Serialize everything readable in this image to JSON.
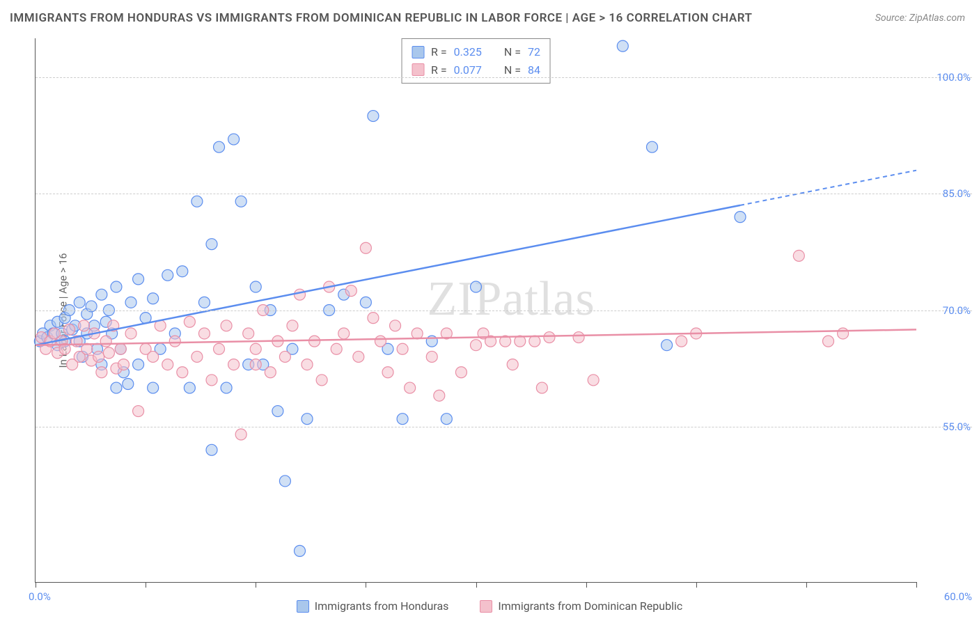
{
  "title": "IMMIGRANTS FROM HONDURAS VS IMMIGRANTS FROM DOMINICAN REPUBLIC IN LABOR FORCE | AGE > 16 CORRELATION CHART",
  "source_label": "Source:",
  "source_value": "ZipAtlas.com",
  "y_axis_label": "In Labor Force | Age > 16",
  "watermark": "ZIPatlas",
  "chart": {
    "type": "scatter",
    "xlim": [
      0,
      60
    ],
    "ylim": [
      35,
      105
    ],
    "x_origin_label": "0.0%",
    "x_max_label": "60.0%",
    "x_tick_positions": [
      0,
      7.5,
      15,
      22.5,
      30,
      37.5,
      45,
      52.5,
      60
    ],
    "y_gridlines": [
      55,
      70,
      85,
      100
    ],
    "y_tick_labels": [
      "55.0%",
      "70.0%",
      "85.0%",
      "100.0%"
    ],
    "background_color": "#ffffff",
    "grid_color": "#cccccc",
    "axis_color": "#555555",
    "tick_label_color": "#5b8def",
    "marker_radius": 8,
    "marker_stroke_width": 1.2,
    "line_width": 2.5
  },
  "series": [
    {
      "name": "Immigrants from Honduras",
      "fill_color": "#a9c7ec",
      "stroke_color": "#5b8def",
      "fill_opacity": 0.55,
      "r_value": "0.325",
      "n_value": "72",
      "trend": {
        "x1": 0,
        "y1": 65.5,
        "x2": 48,
        "y2": 83.5,
        "x2_dash": 60,
        "y2_dash": 88
      },
      "points": [
        [
          0.3,
          66
        ],
        [
          0.5,
          67
        ],
        [
          0.8,
          66.5
        ],
        [
          1,
          68
        ],
        [
          1.2,
          67
        ],
        [
          1.5,
          65.5
        ],
        [
          1.5,
          68.5
        ],
        [
          1.8,
          67
        ],
        [
          2,
          69
        ],
        [
          2,
          66
        ],
        [
          2.3,
          70
        ],
        [
          2.5,
          67.5
        ],
        [
          2.7,
          68
        ],
        [
          3,
          66
        ],
        [
          3,
          71
        ],
        [
          3.2,
          64
        ],
        [
          3.5,
          69.5
        ],
        [
          3.5,
          67
        ],
        [
          3.8,
          70.5
        ],
        [
          4,
          68
        ],
        [
          4.2,
          65
        ],
        [
          4.5,
          72
        ],
        [
          4.5,
          63
        ],
        [
          4.8,
          68.5
        ],
        [
          5,
          70
        ],
        [
          5.2,
          67
        ],
        [
          5.5,
          60
        ],
        [
          5.5,
          73
        ],
        [
          5.8,
          65
        ],
        [
          6,
          62
        ],
        [
          6.3,
          60.5
        ],
        [
          6.5,
          71
        ],
        [
          7,
          74
        ],
        [
          7,
          63
        ],
        [
          7.5,
          69
        ],
        [
          8,
          71.5
        ],
        [
          8,
          60
        ],
        [
          8.5,
          65
        ],
        [
          9,
          74.5
        ],
        [
          9.5,
          67
        ],
        [
          10,
          75
        ],
        [
          10.5,
          60
        ],
        [
          11,
          84
        ],
        [
          11.5,
          71
        ],
        [
          12,
          52
        ],
        [
          12,
          78.5
        ],
        [
          12.5,
          91
        ],
        [
          13,
          60
        ],
        [
          13.5,
          92
        ],
        [
          14,
          84
        ],
        [
          14.5,
          63
        ],
        [
          15,
          73
        ],
        [
          15.5,
          63
        ],
        [
          16,
          70
        ],
        [
          16.5,
          57
        ],
        [
          17,
          48
        ],
        [
          17.5,
          65
        ],
        [
          18,
          39
        ],
        [
          18.5,
          56
        ],
        [
          20,
          70
        ],
        [
          21,
          72
        ],
        [
          22.5,
          71
        ],
        [
          23,
          95
        ],
        [
          24,
          65
        ],
        [
          25,
          56
        ],
        [
          27,
          66
        ],
        [
          28,
          56
        ],
        [
          30,
          73
        ],
        [
          40,
          104
        ],
        [
          42,
          91
        ],
        [
          43,
          65.5
        ],
        [
          48,
          82
        ]
      ]
    },
    {
      "name": "Immigrants from Dominican Republic",
      "fill_color": "#f4c1cc",
      "stroke_color": "#e98fa6",
      "fill_opacity": 0.55,
      "r_value": "0.077",
      "n_value": "84",
      "trend": {
        "x1": 0,
        "y1": 65.5,
        "x2": 60,
        "y2": 67.5,
        "x2_dash": 60,
        "y2_dash": 67.5
      },
      "points": [
        [
          0.4,
          66.5
        ],
        [
          0.7,
          65
        ],
        [
          1,
          66
        ],
        [
          1.3,
          67
        ],
        [
          1.5,
          64.5
        ],
        [
          1.8,
          66
        ],
        [
          2,
          65
        ],
        [
          2.3,
          67.5
        ],
        [
          2.5,
          63
        ],
        [
          2.8,
          66
        ],
        [
          3,
          64
        ],
        [
          3.3,
          68
        ],
        [
          3.5,
          65
        ],
        [
          3.8,
          63.5
        ],
        [
          4,
          67
        ],
        [
          4.3,
          64
        ],
        [
          4.5,
          62
        ],
        [
          4.8,
          66
        ],
        [
          5,
          64.5
        ],
        [
          5.3,
          68
        ],
        [
          5.5,
          62.5
        ],
        [
          5.8,
          65
        ],
        [
          6,
          63
        ],
        [
          6.5,
          67
        ],
        [
          7,
          57
        ],
        [
          7.5,
          65
        ],
        [
          8,
          64
        ],
        [
          8.5,
          68
        ],
        [
          9,
          63
        ],
        [
          9.5,
          66
        ],
        [
          10,
          62
        ],
        [
          10.5,
          68.5
        ],
        [
          11,
          64
        ],
        [
          11.5,
          67
        ],
        [
          12,
          61
        ],
        [
          12.5,
          65
        ],
        [
          13,
          68
        ],
        [
          13.5,
          63
        ],
        [
          14,
          54
        ],
        [
          14.5,
          67
        ],
        [
          15,
          65
        ],
        [
          15,
          63
        ],
        [
          15.5,
          70
        ],
        [
          16,
          62
        ],
        [
          16.5,
          66
        ],
        [
          17,
          64
        ],
        [
          17.5,
          68
        ],
        [
          18,
          72
        ],
        [
          18.5,
          63
        ],
        [
          19,
          66
        ],
        [
          19.5,
          61
        ],
        [
          20,
          73
        ],
        [
          20.5,
          65
        ],
        [
          21,
          67
        ],
        [
          21.5,
          72.5
        ],
        [
          22,
          64
        ],
        [
          22.5,
          78
        ],
        [
          23,
          69
        ],
        [
          23.5,
          66
        ],
        [
          24,
          62
        ],
        [
          24.5,
          68
        ],
        [
          25,
          65
        ],
        [
          25.5,
          60
        ],
        [
          26,
          67
        ],
        [
          27,
          64
        ],
        [
          27.5,
          59
        ],
        [
          28,
          67
        ],
        [
          29,
          62
        ],
        [
          30,
          65.5
        ],
        [
          30.5,
          67
        ],
        [
          31,
          66
        ],
        [
          32,
          66
        ],
        [
          32.5,
          63
        ],
        [
          33,
          66
        ],
        [
          34,
          66
        ],
        [
          34.5,
          60
        ],
        [
          35,
          66.5
        ],
        [
          37,
          66.5
        ],
        [
          38,
          61
        ],
        [
          44,
          66
        ],
        [
          45,
          67
        ],
        [
          52,
          77
        ],
        [
          54,
          66
        ],
        [
          55,
          67
        ]
      ]
    }
  ],
  "stats_box": {
    "rows": [
      {
        "r_label": "R =",
        "r_value": "0.325",
        "n_label": "N =",
        "n_value": "72"
      },
      {
        "r_label": "R =",
        "r_value": "0.077",
        "n_label": "N =",
        "n_value": "84"
      }
    ]
  },
  "bottom_legend": [
    {
      "label": "Immigrants from Honduras"
    },
    {
      "label": "Immigrants from Dominican Republic"
    }
  ]
}
